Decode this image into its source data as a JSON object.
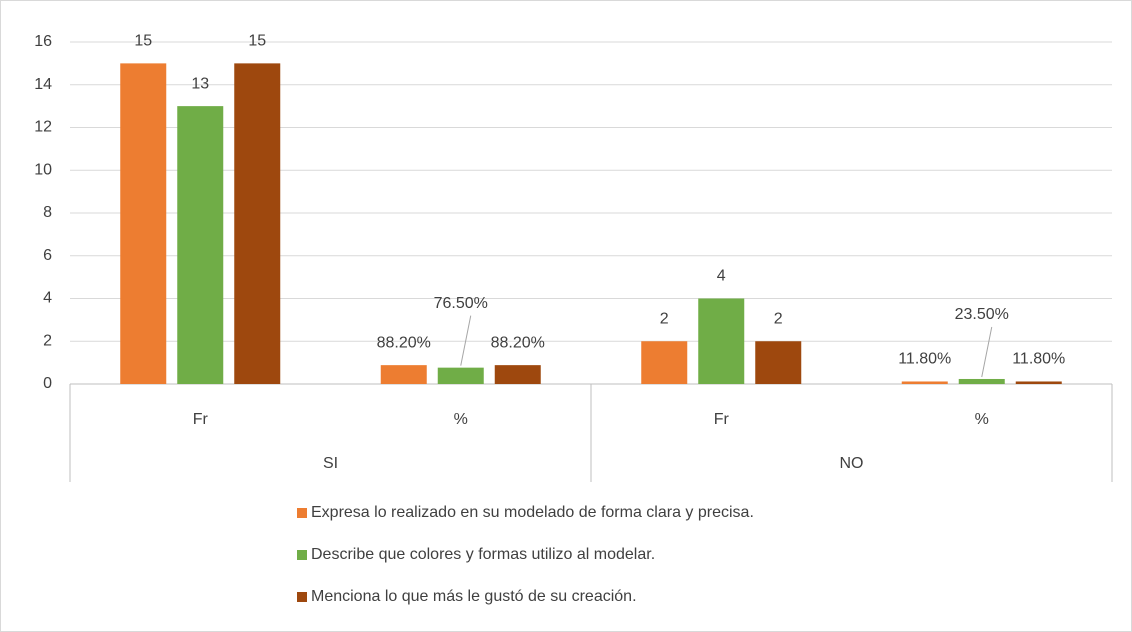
{
  "chart_data": {
    "type": "bar",
    "categories": [
      "Fr",
      "%",
      "Fr",
      "%"
    ],
    "category_groups": [
      "SI",
      "NO"
    ],
    "series": [
      {
        "name": "Expresa lo realizado en su modelado de forma clara y precisa.",
        "color": "#ed7d31",
        "values": [
          15,
          0.882,
          2,
          0.118
        ],
        "value_labels": [
          "15",
          "88.20%",
          "2",
          "11.80%"
        ]
      },
      {
        "name": "Describe que colores y formas utilizo al modelar.",
        "color": "#70ad47",
        "values": [
          13,
          0.765,
          4,
          0.235
        ],
        "value_labels": [
          "13",
          "76.50%",
          "4",
          "23.50%"
        ]
      },
      {
        "name": "Menciona lo que más le gustó de su creación.",
        "color": "#9e480e",
        "values": [
          15,
          0.882,
          2,
          0.118
        ],
        "value_labels": [
          "15",
          "88.20%",
          "2",
          "11.80%"
        ]
      }
    ],
    "ylim": [
      0,
      16
    ],
    "yticks": [
      0,
      2,
      4,
      6,
      8,
      10,
      12,
      14,
      16
    ],
    "grid": true,
    "legend": "bottom"
  }
}
